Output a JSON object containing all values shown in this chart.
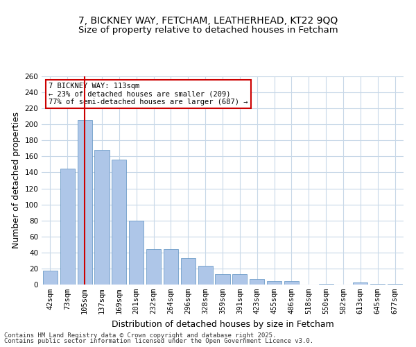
{
  "title_line1": "7, BICKNEY WAY, FETCHAM, LEATHERHEAD, KT22 9QQ",
  "title_line2": "Size of property relative to detached houses in Fetcham",
  "xlabel": "Distribution of detached houses by size in Fetcham",
  "ylabel": "Number of detached properties",
  "categories": [
    "42sqm",
    "73sqm",
    "105sqm",
    "137sqm",
    "169sqm",
    "201sqm",
    "232sqm",
    "264sqm",
    "296sqm",
    "328sqm",
    "359sqm",
    "391sqm",
    "423sqm",
    "455sqm",
    "486sqm",
    "518sqm",
    "550sqm",
    "582sqm",
    "613sqm",
    "645sqm",
    "677sqm"
  ],
  "values": [
    17,
    145,
    205,
    168,
    156,
    80,
    44,
    44,
    33,
    23,
    13,
    13,
    7,
    4,
    4,
    0,
    1,
    0,
    3,
    1,
    1
  ],
  "bar_color": "#aec6e8",
  "bar_edge_color": "#5a8fc0",
  "vline_x": 2,
  "vline_color": "#cc0000",
  "annotation_text": "7 BICKNEY WAY: 113sqm\n← 23% of detached houses are smaller (209)\n77% of semi-detached houses are larger (687) →",
  "annotation_box_color": "#ffffff",
  "annotation_box_edge": "#cc0000",
  "ylim": [
    0,
    260
  ],
  "yticks": [
    0,
    20,
    40,
    60,
    80,
    100,
    120,
    140,
    160,
    180,
    200,
    220,
    240,
    260
  ],
  "footer_line1": "Contains HM Land Registry data © Crown copyright and database right 2025.",
  "footer_line2": "Contains public sector information licensed under the Open Government Licence v3.0.",
  "bg_color": "#ffffff",
  "grid_color": "#c8d8e8",
  "title_fontsize": 10,
  "axis_label_fontsize": 9,
  "tick_fontsize": 7.5,
  "footer_fontsize": 6.5
}
